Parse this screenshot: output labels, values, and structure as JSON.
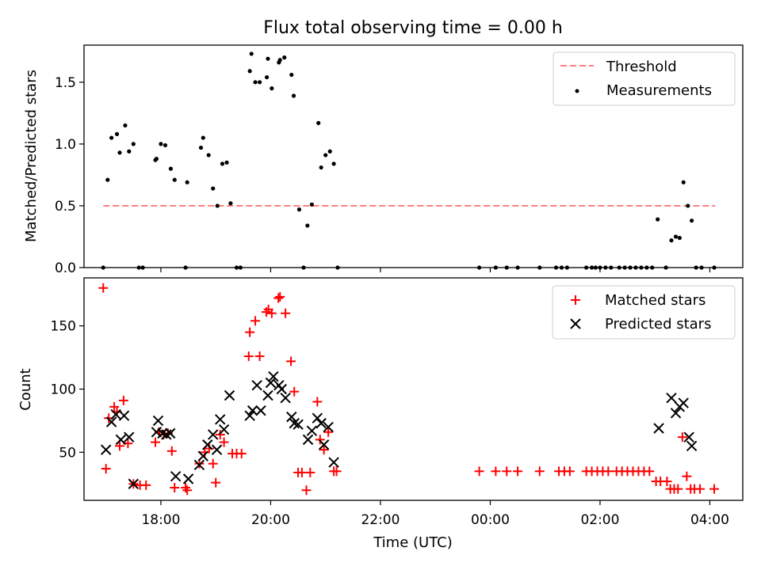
{
  "chart_data": {
    "title": "Flux total observing time = 0.00 h",
    "xlabel": "Time (UTC)",
    "x_ticks": [
      "18:00",
      "20:00",
      "22:00",
      "00:00",
      "02:00",
      "04:00"
    ],
    "x_tick_hours": [
      18,
      20,
      22,
      24,
      26,
      28
    ],
    "xlim_hours": [
      16.6,
      28.6
    ],
    "panels": [
      {
        "type": "scatter",
        "ylabel": "Matched/Predicted stars",
        "ylim": [
          0,
          1.8
        ],
        "yticks": [
          "0.0",
          "0.5",
          "1.0",
          "1.5"
        ],
        "ytick_values": [
          0,
          0.5,
          1.0,
          1.5
        ],
        "legend": {
          "location": "top-right",
          "entries": [
            "Threshold",
            "Measurements"
          ]
        },
        "threshold": {
          "name": "Threshold",
          "value": 0.5,
          "x_start_hours": 16.95,
          "x_end_hours": 28.1,
          "color": "#ff7f7f",
          "style": "dashed"
        },
        "measurements": {
          "name": "Measurements",
          "color": "#000000",
          "points": [
            [
              16.95,
              0.0
            ],
            [
              17.03,
              0.71
            ],
            [
              17.1,
              1.05
            ],
            [
              17.2,
              1.08
            ],
            [
              17.25,
              0.93
            ],
            [
              17.35,
              1.15
            ],
            [
              17.42,
              0.94
            ],
            [
              17.5,
              1.0
            ],
            [
              17.6,
              0.0
            ],
            [
              17.67,
              0.0
            ],
            [
              17.9,
              0.87
            ],
            [
              17.92,
              0.88
            ],
            [
              18.0,
              1.0
            ],
            [
              18.08,
              0.99
            ],
            [
              18.18,
              0.8
            ],
            [
              18.25,
              0.71
            ],
            [
              18.45,
              0.0
            ],
            [
              18.48,
              0.69
            ],
            [
              18.73,
              0.97
            ],
            [
              18.77,
              1.05
            ],
            [
              18.87,
              0.91
            ],
            [
              18.95,
              0.64
            ],
            [
              19.03,
              0.5
            ],
            [
              19.12,
              0.84
            ],
            [
              19.2,
              0.85
            ],
            [
              19.27,
              0.52
            ],
            [
              19.38,
              0.0
            ],
            [
              19.45,
              0.0
            ],
            [
              19.62,
              1.59
            ],
            [
              19.65,
              1.73
            ],
            [
              19.72,
              1.5
            ],
            [
              19.8,
              1.5
            ],
            [
              19.93,
              1.54
            ],
            [
              19.95,
              1.69
            ],
            [
              20.02,
              1.45
            ],
            [
              20.15,
              1.66
            ],
            [
              20.17,
              1.68
            ],
            [
              20.25,
              1.7
            ],
            [
              20.38,
              1.56
            ],
            [
              20.42,
              1.39
            ],
            [
              20.52,
              0.47
            ],
            [
              20.6,
              0.0
            ],
            [
              20.67,
              0.34
            ],
            [
              20.75,
              0.51
            ],
            [
              20.87,
              1.17
            ],
            [
              20.92,
              0.81
            ],
            [
              21.0,
              0.91
            ],
            [
              21.08,
              0.94
            ],
            [
              21.15,
              0.84
            ],
            [
              21.22,
              0.0
            ],
            [
              23.8,
              0.0
            ],
            [
              24.1,
              0.0
            ],
            [
              24.3,
              0.0
            ],
            [
              24.5,
              0.0
            ],
            [
              24.9,
              0.0
            ],
            [
              25.2,
              0.0
            ],
            [
              25.3,
              0.0
            ],
            [
              25.4,
              0.0
            ],
            [
              25.75,
              0.0
            ],
            [
              25.85,
              0.0
            ],
            [
              25.92,
              0.0
            ],
            [
              26.0,
              0.0
            ],
            [
              26.1,
              0.0
            ],
            [
              26.2,
              0.0
            ],
            [
              26.35,
              0.0
            ],
            [
              26.45,
              0.0
            ],
            [
              26.55,
              0.0
            ],
            [
              26.65,
              0.0
            ],
            [
              26.75,
              0.0
            ],
            [
              26.85,
              0.0
            ],
            [
              26.95,
              0.0
            ],
            [
              27.05,
              0.39
            ],
            [
              27.2,
              0.0
            ],
            [
              27.3,
              0.22
            ],
            [
              27.38,
              0.25
            ],
            [
              27.45,
              0.24
            ],
            [
              27.52,
              0.69
            ],
            [
              27.6,
              0.5
            ],
            [
              27.67,
              0.38
            ],
            [
              27.75,
              0.0
            ],
            [
              27.85,
              0.0
            ],
            [
              28.08,
              0.0
            ]
          ]
        }
      },
      {
        "type": "scatter",
        "ylabel": "Count",
        "ylim": [
          12,
          188
        ],
        "yticks": [
          "50",
          "100",
          "150"
        ],
        "ytick_values": [
          50,
          100,
          150
        ],
        "legend": {
          "location": "top-right",
          "entries": [
            "Matched stars",
            "Predicted stars"
          ]
        },
        "series": [
          {
            "name": "Matched stars",
            "marker": "plus",
            "color": "#ff0000",
            "points": [
              [
                16.95,
                180
              ],
              [
                17.0,
                37
              ],
              [
                17.05,
                77
              ],
              [
                17.15,
                86
              ],
              [
                17.2,
                82
              ],
              [
                17.25,
                55
              ],
              [
                17.32,
                91
              ],
              [
                17.4,
                57
              ],
              [
                17.5,
                25
              ],
              [
                17.62,
                24
              ],
              [
                17.73,
                24
              ],
              [
                17.9,
                58
              ],
              [
                17.97,
                66
              ],
              [
                18.05,
                64
              ],
              [
                18.13,
                65
              ],
              [
                18.2,
                51
              ],
              [
                18.25,
                22
              ],
              [
                18.45,
                22
              ],
              [
                18.48,
                20
              ],
              [
                18.7,
                41
              ],
              [
                18.8,
                50
              ],
              [
                18.88,
                53
              ],
              [
                18.95,
                41
              ],
              [
                19.0,
                26
              ],
              [
                19.08,
                64
              ],
              [
                19.15,
                58
              ],
              [
                19.3,
                49
              ],
              [
                19.38,
                49
              ],
              [
                19.47,
                49
              ],
              [
                19.6,
                126
              ],
              [
                19.62,
                145
              ],
              [
                19.72,
                154
              ],
              [
                19.8,
                126
              ],
              [
                19.92,
                161
              ],
              [
                19.96,
                163
              ],
              [
                20.02,
                160
              ],
              [
                20.14,
                172
              ],
              [
                20.17,
                173
              ],
              [
                20.27,
                160
              ],
              [
                20.37,
                122
              ],
              [
                20.43,
                98
              ],
              [
                20.5,
                34
              ],
              [
                20.57,
                34
              ],
              [
                20.65,
                20
              ],
              [
                20.72,
                34
              ],
              [
                20.85,
                90
              ],
              [
                20.9,
                60
              ],
              [
                20.97,
                52
              ],
              [
                21.05,
                66
              ],
              [
                21.15,
                35
              ],
              [
                21.2,
                35
              ],
              [
                23.8,
                35
              ],
              [
                24.1,
                35
              ],
              [
                24.3,
                35
              ],
              [
                24.5,
                35
              ],
              [
                24.9,
                35
              ],
              [
                25.25,
                35
              ],
              [
                25.35,
                35
              ],
              [
                25.45,
                35
              ],
              [
                25.75,
                35
              ],
              [
                25.85,
                35
              ],
              [
                25.95,
                35
              ],
              [
                26.05,
                35
              ],
              [
                26.15,
                35
              ],
              [
                26.3,
                35
              ],
              [
                26.4,
                35
              ],
              [
                26.5,
                35
              ],
              [
                26.6,
                35
              ],
              [
                26.7,
                35
              ],
              [
                26.8,
                35
              ],
              [
                26.9,
                35
              ],
              [
                27.02,
                27
              ],
              [
                27.1,
                27
              ],
              [
                27.22,
                27
              ],
              [
                27.28,
                21
              ],
              [
                27.35,
                21
              ],
              [
                27.42,
                21
              ],
              [
                27.5,
                62
              ],
              [
                27.58,
                31
              ],
              [
                27.65,
                21
              ],
              [
                27.72,
                21
              ],
              [
                27.82,
                21
              ],
              [
                28.08,
                21
              ]
            ]
          },
          {
            "name": "Predicted stars",
            "marker": "x",
            "color": "#000000",
            "points": [
              [
                17.0,
                52
              ],
              [
                17.1,
                74
              ],
              [
                17.18,
                80
              ],
              [
                17.27,
                60
              ],
              [
                17.33,
                79
              ],
              [
                17.42,
                62
              ],
              [
                17.5,
                25
              ],
              [
                17.92,
                66
              ],
              [
                17.95,
                75
              ],
              [
                18.03,
                65
              ],
              [
                18.1,
                64
              ],
              [
                18.17,
                65
              ],
              [
                18.27,
                31
              ],
              [
                18.5,
                29
              ],
              [
                18.7,
                40
              ],
              [
                18.77,
                47
              ],
              [
                18.85,
                56
              ],
              [
                18.95,
                64
              ],
              [
                19.02,
                52
              ],
              [
                19.08,
                76
              ],
              [
                19.15,
                68
              ],
              [
                19.25,
                95
              ],
              [
                19.62,
                79
              ],
              [
                19.67,
                83
              ],
              [
                19.75,
                103
              ],
              [
                19.82,
                83
              ],
              [
                19.95,
                95
              ],
              [
                20.0,
                105
              ],
              [
                20.05,
                110
              ],
              [
                20.15,
                103
              ],
              [
                20.2,
                100
              ],
              [
                20.27,
                93
              ],
              [
                20.38,
                78
              ],
              [
                20.43,
                73
              ],
              [
                20.5,
                72
              ],
              [
                20.68,
                60
              ],
              [
                20.75,
                67
              ],
              [
                20.85,
                77
              ],
              [
                20.92,
                73
              ],
              [
                20.97,
                56
              ],
              [
                21.05,
                70
              ],
              [
                21.15,
                42
              ],
              [
                27.07,
                69
              ],
              [
                27.3,
                93
              ],
              [
                27.38,
                81
              ],
              [
                27.45,
                86
              ],
              [
                27.52,
                89
              ],
              [
                27.62,
                62
              ],
              [
                27.67,
                55
              ]
            ]
          }
        ]
      }
    ]
  }
}
